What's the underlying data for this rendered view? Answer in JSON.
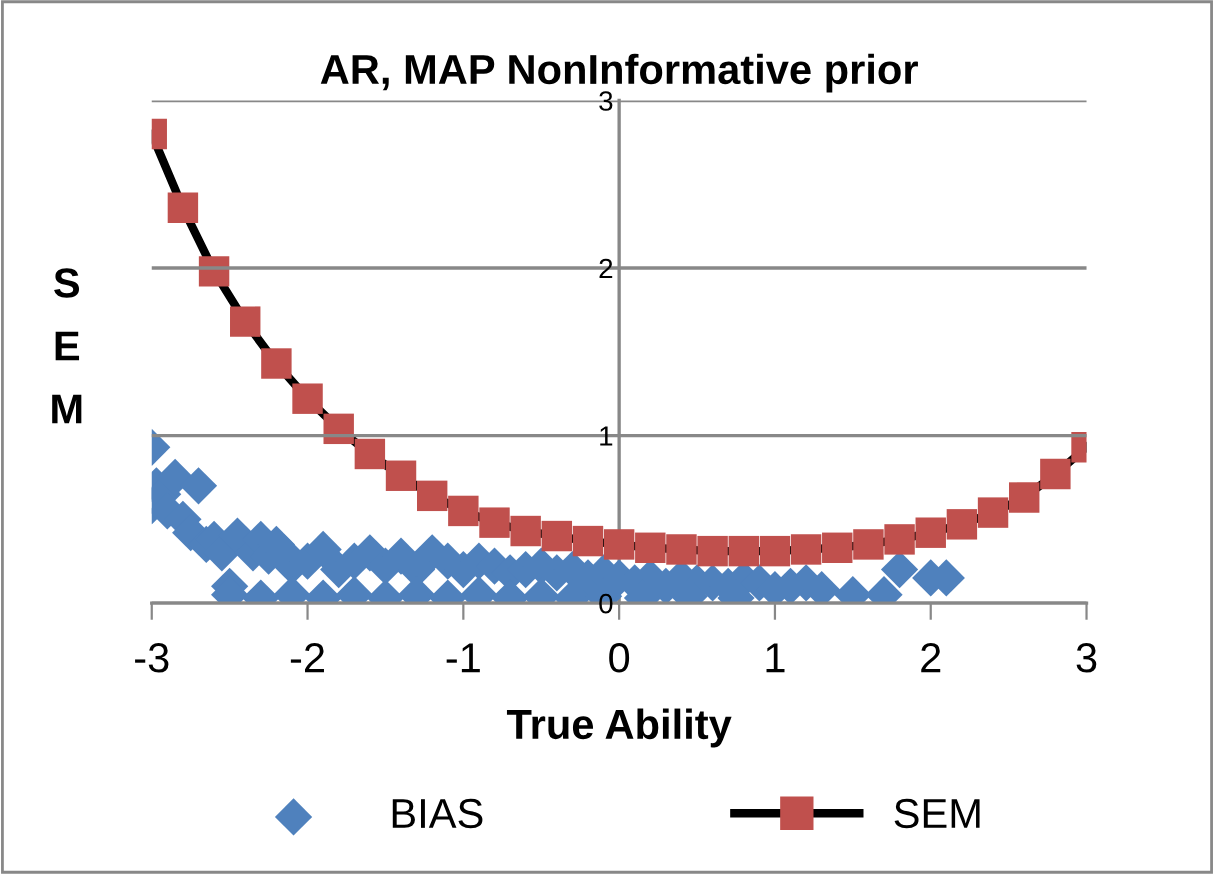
{
  "chart_data": {
    "type": "line",
    "title": "AR, MAP NonInformative prior",
    "xlabel": "True Ability",
    "ylabel": "S\nE\nM",
    "xlim": [
      -3,
      3
    ],
    "ylim": [
      0,
      3
    ],
    "xticks": [
      -3,
      -2,
      -1,
      0,
      1,
      2,
      3
    ],
    "yticks": [
      0,
      1,
      2,
      3
    ],
    "grid": "y",
    "legend": "bottom",
    "series": [
      {
        "name": "BIAS",
        "type": "scatter",
        "marker": "diamond",
        "color": "#4f81bd",
        "x": [
          -3.0,
          -3.0,
          -2.97,
          -2.93,
          -2.9,
          -2.85,
          -2.8,
          -2.75,
          -2.7,
          -2.65,
          -2.6,
          -2.55,
          -2.5,
          -2.45,
          -2.35,
          -2.3,
          -2.25,
          -2.2,
          -2.15,
          -2.1,
          -2.0,
          -1.9,
          -1.8,
          -1.7,
          -1.6,
          -1.5,
          -1.4,
          -1.3,
          -1.2,
          -1.1,
          -1.0,
          -0.9,
          -0.8,
          -0.7,
          -0.6,
          -0.5,
          -0.4,
          -0.3,
          -0.2,
          -0.1,
          0.0,
          0.1,
          0.2,
          0.3,
          0.4,
          0.5,
          0.6,
          0.7,
          0.8,
          0.9,
          1.0,
          1.1,
          1.2,
          1.3,
          1.5,
          1.7,
          1.8,
          2.0,
          2.1,
          -2.5,
          -2.3,
          -2.1,
          -1.9,
          -1.7,
          -1.5,
          -1.3,
          -1.1,
          -0.9,
          -0.7,
          -0.5,
          -0.3,
          -0.1,
          0.15,
          0.45,
          0.75
        ],
        "values": [
          0.93,
          0.58,
          0.7,
          0.65,
          0.55,
          0.75,
          0.5,
          0.42,
          0.7,
          0.35,
          0.38,
          0.3,
          0.1,
          0.4,
          0.3,
          0.38,
          0.28,
          0.35,
          0.3,
          0.22,
          0.25,
          0.32,
          0.2,
          0.25,
          0.3,
          0.22,
          0.28,
          0.2,
          0.3,
          0.25,
          0.2,
          0.25,
          0.22,
          0.18,
          0.2,
          0.22,
          0.18,
          0.2,
          0.15,
          0.18,
          0.15,
          0.12,
          0.15,
          0.1,
          0.15,
          0.12,
          0.12,
          0.1,
          0.14,
          0.12,
          0.08,
          0.1,
          0.12,
          0.08,
          0.05,
          0.05,
          0.2,
          0.15,
          0.15,
          0.05,
          0.03,
          0.05,
          0.03,
          0.05,
          0.03,
          0.05,
          0.03,
          0.05,
          0.03,
          0.04,
          0.03,
          0.04,
          0.03,
          0.04,
          0.03
        ]
      },
      {
        "name": "SEM",
        "marker": "square",
        "color": "#000000",
        "colors": [
          "#c0504d",
          "#c0504d",
          "#c0504d",
          "#c0504d",
          "#c0504d",
          "#c0504d",
          "#c0504d",
          "#c0504d",
          "#c0504d",
          "#c0504d",
          "#c0504d",
          "#c0504d",
          "#c0504d",
          "#c0504d",
          "#c0504d",
          "#c0504d",
          "#c0504d",
          "#c0504d",
          "#c0504d",
          "#c0504d",
          "#c0504d",
          "#c0504d",
          "#c0504d",
          "#c0504d",
          "#c0504d",
          "#c0504d",
          "#c0504d",
          "#c0504d",
          "#c0504d",
          "#c0504d",
          "#c0504d"
        ],
        "x": [
          -3.0,
          -2.8,
          -2.6,
          -2.4,
          -2.2,
          -2.0,
          -1.8,
          -1.6,
          -1.4,
          -1.2,
          -1.0,
          -0.8,
          -0.6,
          -0.4,
          -0.2,
          0.0,
          0.2,
          0.4,
          0.6,
          0.8,
          1.0,
          1.2,
          1.4,
          1.6,
          1.8,
          2.0,
          2.2,
          2.4,
          2.6,
          2.8,
          3.0
        ],
        "values": [
          2.8,
          2.36,
          1.98,
          1.68,
          1.43,
          1.22,
          1.04,
          0.89,
          0.76,
          0.64,
          0.55,
          0.48,
          0.43,
          0.4,
          0.37,
          0.35,
          0.33,
          0.32,
          0.31,
          0.31,
          0.31,
          0.32,
          0.33,
          0.35,
          0.38,
          0.42,
          0.47,
          0.54,
          0.63,
          0.77,
          0.93
        ]
      }
    ]
  }
}
